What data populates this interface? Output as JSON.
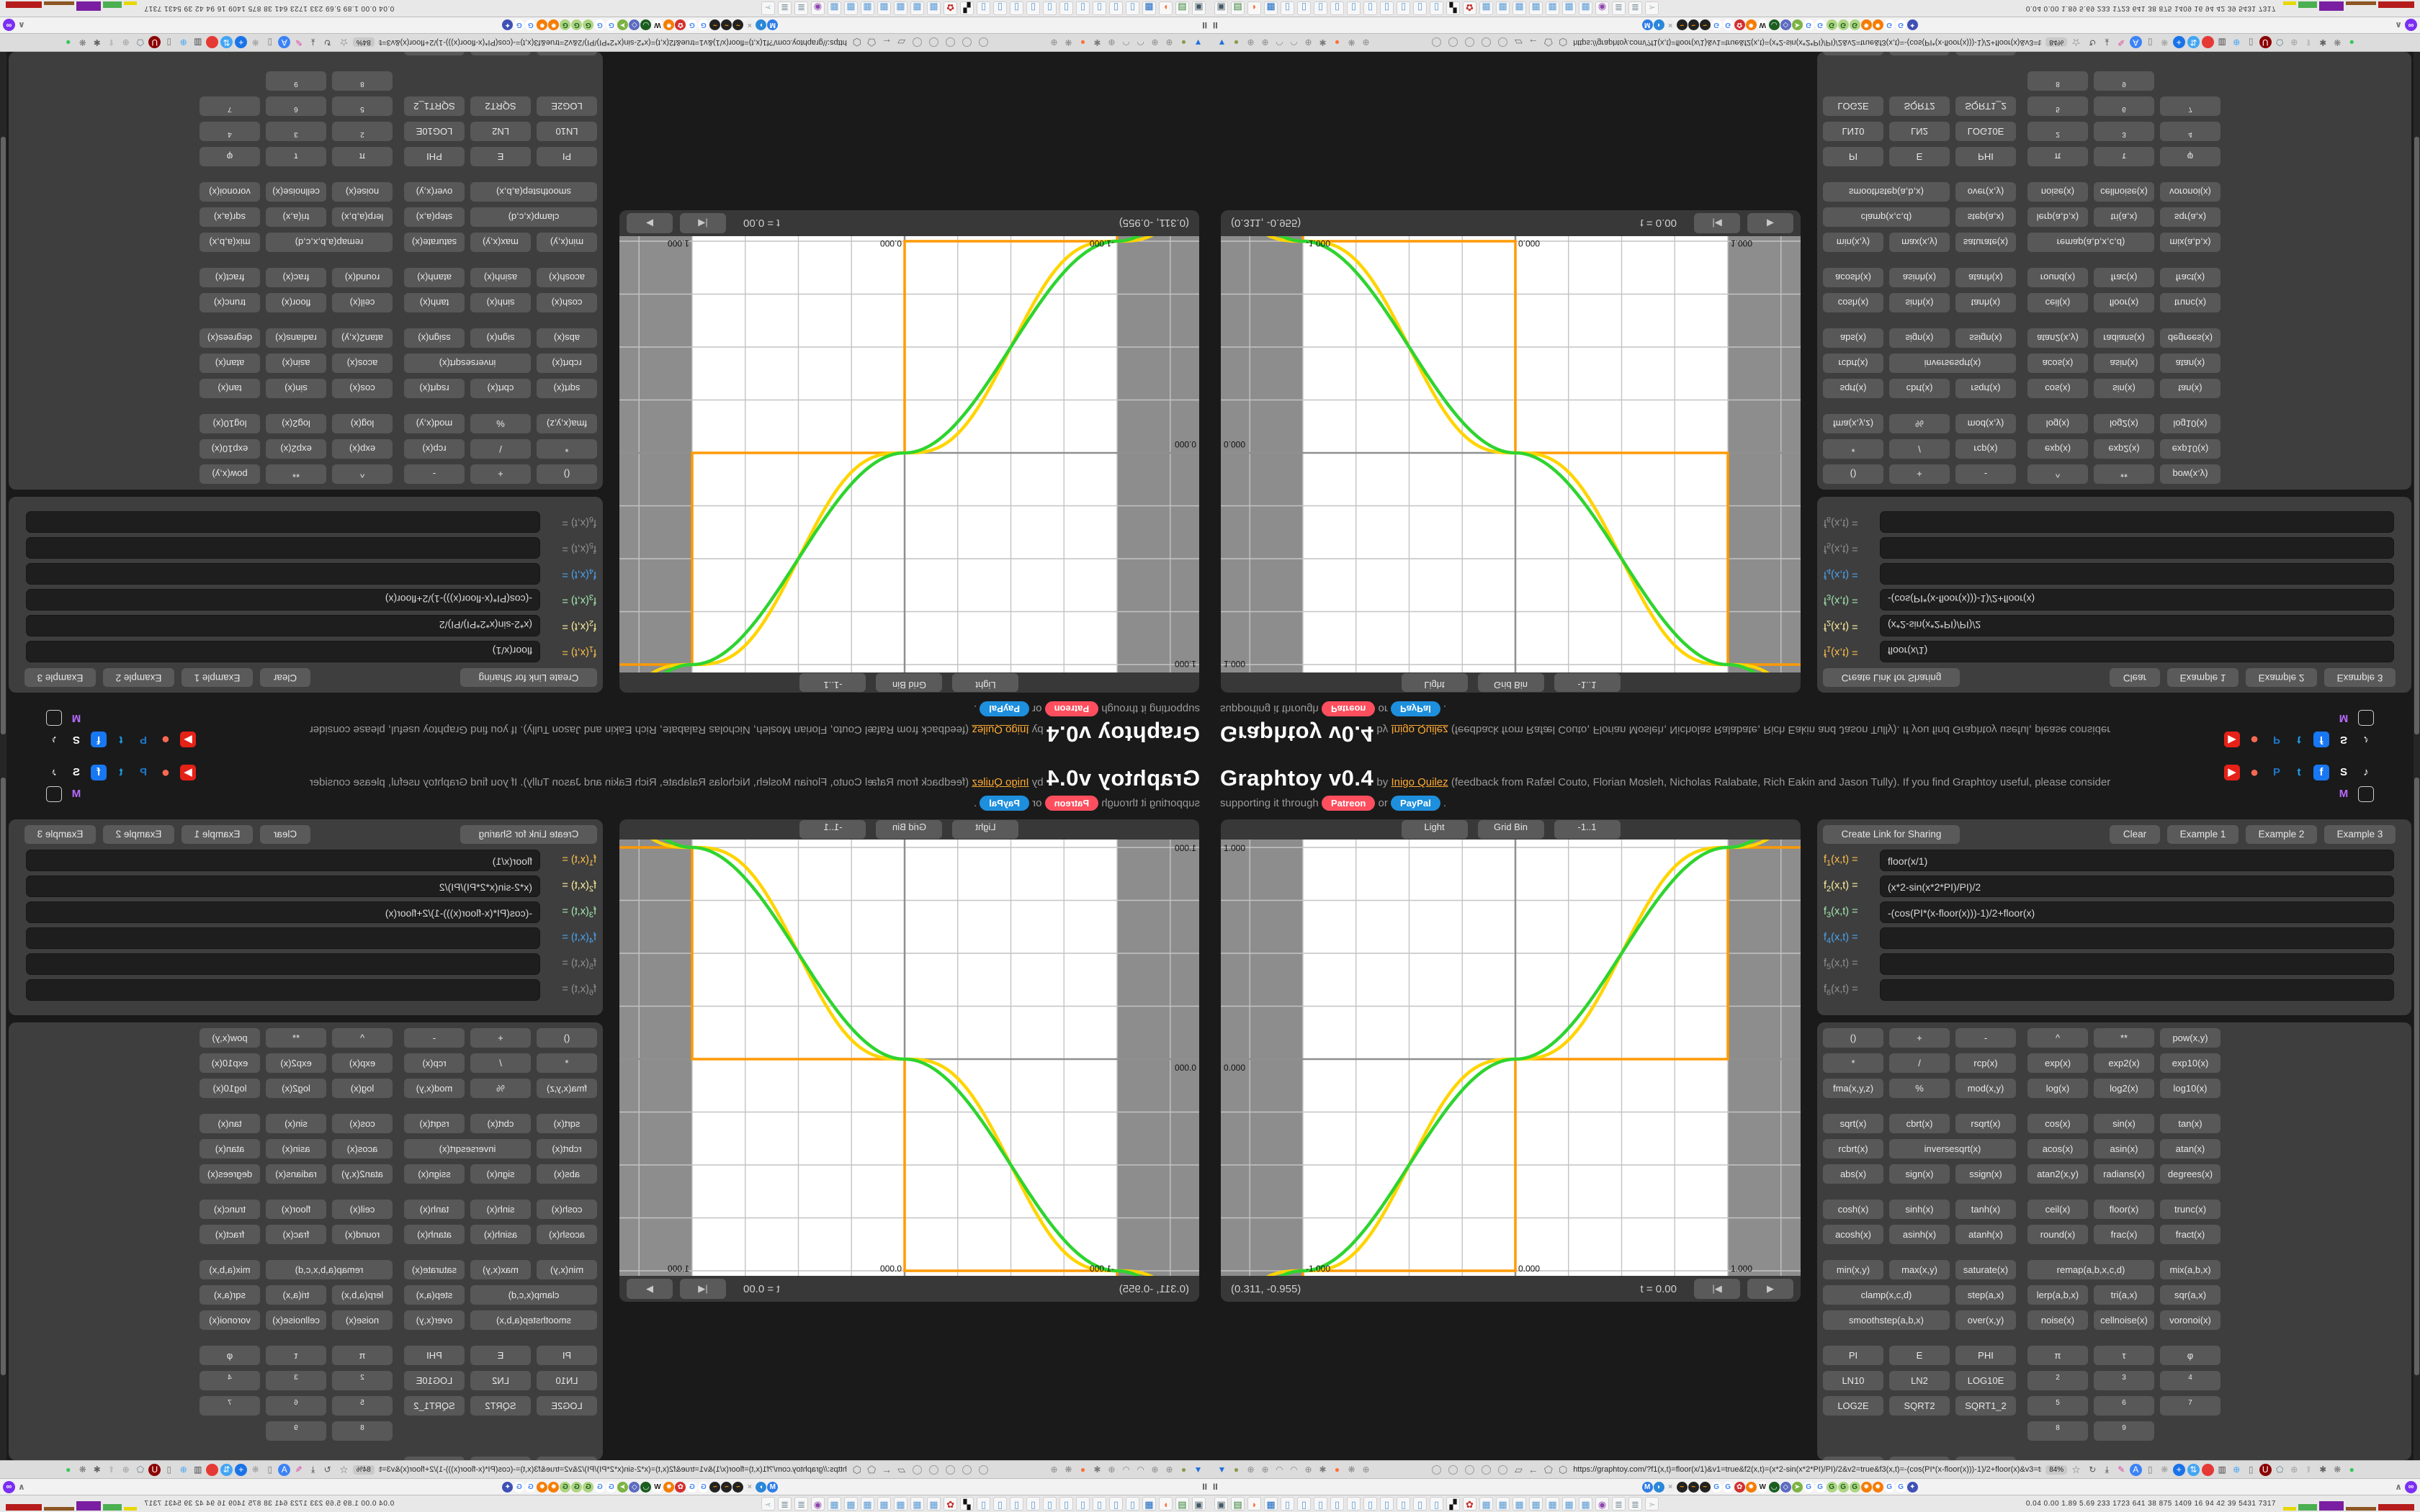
{
  "header": {
    "title": "Graphtoy v0.4",
    "byline_prefix": "by",
    "author": "Inigo Quilez",
    "credits": "(feedback from Rafæl Couto, Florian Mosleh, Nicholas Ralabate, Rich Eakin and Jason Tully). If you find Graphtoy useful, please consider",
    "support_prefix": "supporting it through",
    "support_or": "or",
    "support_suffix": ".",
    "patreon_label": "Patreon",
    "paypal_label": "PayPal",
    "social_row1": [
      {
        "name": "youtube-icon",
        "glyph": "▶",
        "bg": "#e62117",
        "fg": "#ffffff"
      },
      {
        "name": "patreon-icon",
        "glyph": "●",
        "bg": "none",
        "fg": "#f96854"
      },
      {
        "name": "paypal-icon",
        "glyph": "P",
        "bg": "none",
        "fg": "#1e77c8"
      },
      {
        "name": "twitter-icon",
        "glyph": "t",
        "bg": "none",
        "fg": "#1da1f2"
      },
      {
        "name": "facebook-icon",
        "glyph": "f",
        "bg": "#1877f2",
        "fg": "#ffffff"
      },
      {
        "name": "shadertoy-icon",
        "glyph": "S",
        "bg": "none",
        "fg": "#ffffff"
      },
      {
        "name": "tiktok-icon",
        "glyph": "♪",
        "bg": "none",
        "fg": "#ffffff"
      }
    ],
    "social_row2": [
      {
        "name": "mastodon-icon",
        "glyph": "M",
        "bg": "none",
        "fg": "#b66bff"
      },
      {
        "name": "broken-image-icon",
        "glyph": "",
        "bg": "none",
        "fg": "#ffffff"
      }
    ]
  },
  "sharing": {
    "create_link": "Create Link for Sharing",
    "clear": "Clear",
    "examples": [
      "Example 1",
      "Example 2",
      "Example 3"
    ]
  },
  "formulas": [
    {
      "name": "f",
      "index": "1",
      "args": "(x,t) =",
      "value": "floor(x/1)",
      "color": "#ffc04d"
    },
    {
      "name": "f",
      "index": "2",
      "args": "(x,t) =",
      "value": "(x*2-sin(x*2*PI)/PI)/2",
      "color": "#fff19f"
    },
    {
      "name": "f",
      "index": "3",
      "args": "(x,t) =",
      "value": "-(cos(PI*(x-floor(x)))-1)/2+floor(x)",
      "color": "#a4eab0"
    },
    {
      "name": "f",
      "index": "4",
      "args": "(x,t) =",
      "value": "",
      "color": "#4aa3f0"
    },
    {
      "name": "f",
      "index": "5",
      "args": "(x,t) =",
      "value": "",
      "color": "#8f8f8f"
    },
    {
      "name": "f",
      "index": "6",
      "args": "(x,t) =",
      "value": "",
      "color": "#8f8f8f"
    }
  ],
  "grid_sections": [
    [
      [
        "()",
        "+",
        "-",
        "^",
        "**",
        "pow(x,y)"
      ],
      [
        "*",
        "/",
        "rcp(x)",
        "exp(x)",
        "exp2(x)",
        "exp10(x)"
      ],
      [
        "fma(x,y,z)",
        "%",
        "mod(x,y)",
        "log(x)",
        "log2(x)",
        "log10(x)"
      ]
    ],
    [
      [
        "sqrt(x)",
        "cbrt(x)",
        "rsqrt(x)",
        "cos(x)",
        "sin(x)",
        "tan(x)"
      ],
      [
        "rcbrt(x)",
        {
          "t": "inversesqrt(x)",
          "span": 2
        },
        "acos(x)",
        "asin(x)",
        "atan(x)"
      ],
      [
        "abs(x)",
        "sign(x)",
        "ssign(x)",
        "atan2(x,y)",
        "radians(x)",
        "degrees(x)"
      ]
    ],
    [
      [
        "cosh(x)",
        "sinh(x)",
        "tanh(x)",
        "ceil(x)",
        "floor(x)",
        "trunc(x)"
      ],
      [
        "acosh(x)",
        "asinh(x)",
        "atanh(x)",
        "round(x)",
        "frac(x)",
        "fract(x)"
      ]
    ],
    [
      [
        "min(x,y)",
        "max(x,y)",
        "saturate(x)",
        {
          "t": "remap(a,b,x,c,d)",
          "span": 2
        },
        "mix(a,b,x)"
      ],
      [
        {
          "t": "clamp(x,c,d)",
          "span": 2
        },
        "step(a,x)",
        "lerp(a,b,x)",
        "tri(a,x)",
        "sqr(a,x)"
      ],
      [
        {
          "t": "smoothstep(a,b,x)",
          "span": 2
        },
        "over(x,y)",
        "noise(x)",
        "cellnoise(x)",
        "voronoi(x)"
      ]
    ],
    [
      [
        "PI",
        "E",
        "PHI",
        "π",
        "τ",
        "φ"
      ],
      [
        "LN10",
        "LN2",
        "LOG10E",
        {
          "t": "2",
          "sup": true
        },
        {
          "t": "3",
          "sup": true
        },
        {
          "t": "4",
          "sup": true
        }
      ],
      [
        "LOG2E",
        "SQRT2",
        "SQRT1_2",
        {
          "t": "5",
          "sup": true
        },
        {
          "t": "6",
          "sup": true
        },
        {
          "t": "7",
          "sup": true
        }
      ],
      [
        null,
        null,
        null,
        {
          "t": "8",
          "sup": true
        },
        {
          "t": "9",
          "sup": true
        },
        null
      ]
    ],
    [
      [
        "",
        "",
        ""
      ]
    ]
  ],
  "canvas": {
    "toolbar": [
      "Light",
      "Grid Bin",
      "-1..1"
    ],
    "coords": "(0.311, -0.955)",
    "time_label": "t = 0.00",
    "rewind_glyph": "|◀",
    "play_glyph": "▶",
    "axis_labels": {
      "top_left": "1.000",
      "mid_left": "0.000",
      "bottom": [
        "-1.000",
        "0.000",
        "1.000"
      ]
    },
    "chart_data": {
      "type": "line",
      "title": "Graphtoy plot",
      "xlim": [
        -1.39,
        1.34
      ],
      "ylim": [
        -1.02,
        1.0
      ],
      "grid_step": 0.25,
      "band_range": [
        -1,
        1
      ],
      "t": 0,
      "functions": [
        {
          "name": "f1",
          "expr": "floor(x/1)",
          "color": "#ff9a00"
        },
        {
          "name": "f2",
          "expr": "(x*2-sin(x*2*PI)/PI)/2",
          "color": "#ffd400"
        },
        {
          "name": "f3",
          "expr": "-(cos(PI*(x-floor(x)))-1)/2+floor(x)",
          "color": "#2fd42f"
        }
      ]
    }
  },
  "browser": {
    "url": "https://graphtoy.com/?f1(x,t)=floor(x/1)&v1=true&f2(x,t)=(x*2-sin(x*2*PI)/PI)/2&v2=true&f3(x,t)=-(cos(PI*(x-floor(x)))-1)/2+floor(x)&v3=true&f4(x,t)=&v4=true&f5(x,t)=&v5=false",
    "zoom_badge": "84%",
    "pinned_tab_glyph": "II",
    "tab_collapse_glyph": "∧",
    "tab_overflow_glyph": "∞",
    "nav_glyphs": [
      "▱",
      "←",
      "⬠",
      "⬡"
    ],
    "toolbar_left_icons": [
      {
        "g": "▼",
        "c": "#1f6fe0"
      },
      {
        "g": "●",
        "c": "#8a9a4a"
      },
      {
        "g": "⊕",
        "c": "#8a8a8a"
      },
      {
        "g": "⊕",
        "c": "#8a8a8a"
      },
      {
        "g": "◠",
        "c": "#8a8a8a"
      },
      {
        "g": "◠",
        "c": "#8a8a8a"
      },
      {
        "g": "⊕",
        "c": "#8a8a8a"
      },
      {
        "g": "✱",
        "c": "#7a7a7a"
      },
      {
        "g": "●",
        "c": "#ff7139"
      },
      {
        "g": "❋",
        "c": "#8a8a8a"
      },
      {
        "g": "⊕",
        "c": "#8a8a8a"
      }
    ],
    "toolbar_right_icons": [
      {
        "g": "↻",
        "c": "#555555"
      },
      {
        "g": "⤓",
        "c": "#333333"
      },
      {
        "g": "✎",
        "c": "#e040a0"
      },
      {
        "g": "A",
        "c": "#ffffff",
        "bg": "#3b82f6"
      },
      {
        "g": "▯",
        "c": "#777777"
      },
      {
        "g": "❋",
        "c": "#9e9e9e"
      },
      {
        "g": "+",
        "c": "#ffffff",
        "bg": "#1a73e8"
      },
      {
        "g": "⇅",
        "c": "#ffffff",
        "bg": "#42a5f5"
      },
      {
        "g": "",
        "c": "#ffffff",
        "bg": "#e53935"
      },
      {
        "g": "▥",
        "c": "#444444"
      },
      {
        "g": "⊕",
        "c": "#42a5f5"
      },
      {
        "g": "▯",
        "c": "#777777"
      },
      {
        "g": "U",
        "c": "#ffffff",
        "bg": "#8b0000"
      },
      {
        "g": "⬠",
        "c": "#607d8b"
      },
      {
        "g": "⊕",
        "c": "#9e9e9e"
      },
      {
        "g": "⬆",
        "c": "#bdbdbd"
      },
      {
        "g": "✱",
        "c": "#616161"
      },
      {
        "g": "❋",
        "c": "#757575"
      },
      {
        "g": "●",
        "c": "#34c759"
      }
    ],
    "favicons": [
      {
        "g": "M",
        "c": "#ffffff",
        "bg": "#2e7de9"
      },
      {
        "g": "◗",
        "c": "#ffffff",
        "bg": "#2b88d8"
      },
      {
        "g": "×",
        "c": "#9e9e9e",
        "bg": "#eeeeee"
      },
      {
        "g": "~",
        "c": "#ff9800",
        "bg": "#222222"
      },
      {
        "g": "~",
        "c": "#ff9800",
        "bg": "#222222"
      },
      {
        "g": "~",
        "c": "#ff9800",
        "bg": "#222222"
      },
      {
        "g": "G",
        "c": "#4285f4",
        "bg": "#ffffff"
      },
      {
        "g": "G",
        "c": "#4285f4",
        "bg": "#ffffff"
      },
      {
        "g": "✿",
        "c": "#ffffff",
        "bg": "#d32f2f"
      },
      {
        "g": "✸",
        "c": "#ffffff",
        "bg": "#f57c00"
      },
      {
        "g": "W",
        "c": "#222222",
        "bg": "#ffffff"
      },
      {
        "g": "◡",
        "c": "#ffffff",
        "bg": "#1b5e20"
      },
      {
        "g": "◇",
        "c": "#ffffff",
        "bg": "#5c6bc0"
      },
      {
        "g": "➤",
        "c": "#ffffff",
        "bg": "#7cb342"
      },
      {
        "g": "G",
        "c": "#4285f4",
        "bg": "#ffffff"
      },
      {
        "g": "G",
        "c": "#4285f4",
        "bg": "#ffffff"
      },
      {
        "g": "G",
        "c": "#1b5e20",
        "bg": "#aed581"
      },
      {
        "g": "G",
        "c": "#1b5e20",
        "bg": "#aed581"
      },
      {
        "g": "G",
        "c": "#1b5e20",
        "bg": "#aed581"
      },
      {
        "g": "✸",
        "c": "#ffffff",
        "bg": "#f57c00"
      },
      {
        "g": "✸",
        "c": "#ffffff",
        "bg": "#f57c00"
      },
      {
        "g": "G",
        "c": "#4285f4",
        "bg": "#ffffff"
      },
      {
        "g": "G",
        "c": "#4285f4",
        "bg": "#ffffff"
      },
      {
        "g": "✦",
        "c": "#ffffff",
        "bg": "#3f51b5"
      }
    ]
  },
  "taskbar": {
    "icons": [
      {
        "g": "▣",
        "c": "#455a64"
      },
      {
        "g": "▤",
        "c": "#2e7d32"
      },
      {
        "g": "◗",
        "c": "#ff7139"
      },
      {
        "g": "▦",
        "c": "#1565c0"
      },
      {
        "g": "▯",
        "c": "#5b9bd5"
      },
      {
        "g": "▯",
        "c": "#5b9bd5"
      },
      {
        "g": "▯",
        "c": "#5b9bd5"
      },
      {
        "g": "▯",
        "c": "#5b9bd5"
      },
      {
        "g": "▯",
        "c": "#5b9bd5"
      },
      {
        "g": "▯",
        "c": "#5b9bd5"
      },
      {
        "g": "▯",
        "c": "#5b9bd5"
      },
      {
        "g": "▯",
        "c": "#5b9bd5"
      },
      {
        "g": "▯",
        "c": "#5b9bd5"
      },
      {
        "g": "▯",
        "c": "#5b9bd5"
      },
      {
        "g": "▞",
        "c": "#111111"
      },
      {
        "g": "✿",
        "c": "#c62828"
      },
      {
        "g": "▦",
        "c": "#5b9bd5"
      },
      {
        "g": "▦",
        "c": "#5b9bd5"
      },
      {
        "g": "▦",
        "c": "#5b9bd5"
      },
      {
        "g": "▦",
        "c": "#5b9bd5"
      },
      {
        "g": "▦",
        "c": "#5b9bd5"
      },
      {
        "g": "▦",
        "c": "#5b9bd5"
      },
      {
        "g": "▦",
        "c": "#5b9bd5"
      },
      {
        "g": "◉",
        "c": "#8e44ad"
      },
      {
        "g": "≣",
        "c": "#78909c"
      },
      {
        "g": "≣",
        "c": "#78909c"
      },
      {
        "g": "➣",
        "c": "#b0bec5"
      }
    ],
    "stats": "0.04 0.00 1.89 5.69  233 1723 641  38  875 1409  16  94  42  39  5431 7317",
    "sparkline_colors": [
      "#e6d800",
      "#4caf50",
      "#7b1fa2",
      "#8d5524",
      "#b71c1c"
    ]
  }
}
